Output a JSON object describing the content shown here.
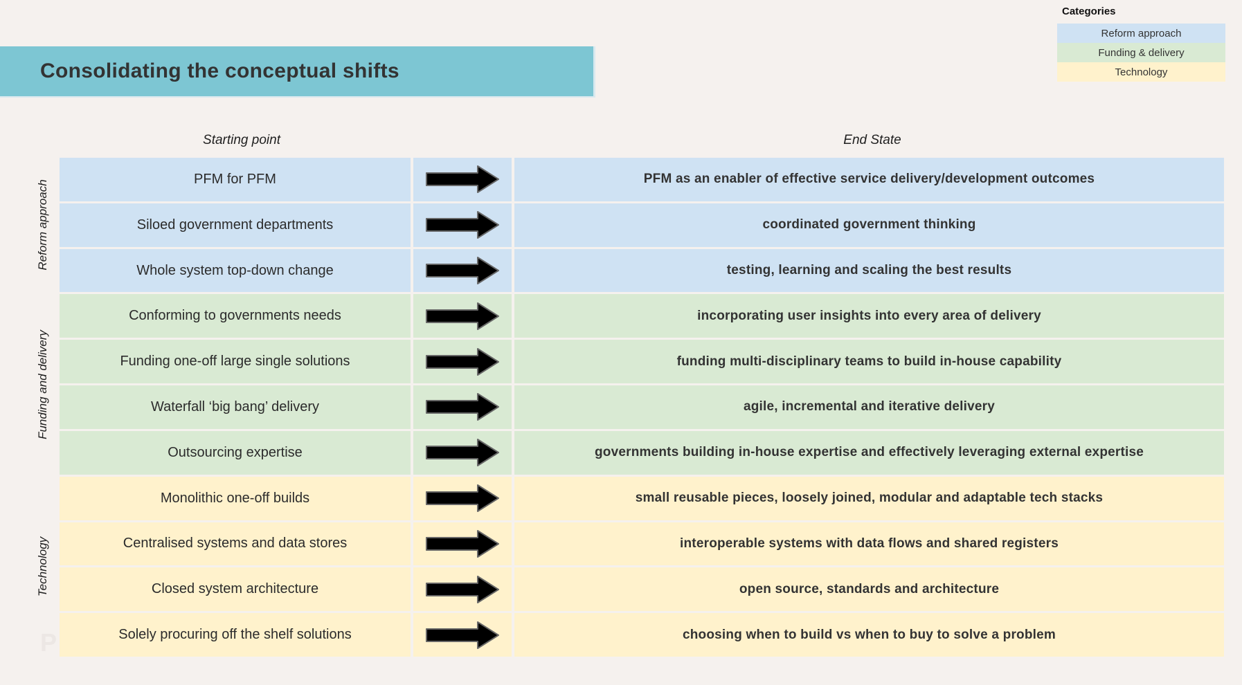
{
  "title": {
    "text": "Consolidating the conceptual shifts",
    "banner_color": "#7dc6d3",
    "text_color": "#333333"
  },
  "background_color": "#f5f1ee",
  "legend": {
    "heading": "Categories",
    "items": [
      {
        "label": "Reform approach",
        "color": "#cfe2f3"
      },
      {
        "label": "Funding & delivery",
        "color": "#d9ead3"
      },
      {
        "label": "Technology",
        "color": "#fff2cc"
      }
    ]
  },
  "columns": {
    "start": "Starting point",
    "end": "End State"
  },
  "arrow": {
    "icon": "right-arrow",
    "fill": "#000000",
    "stroke": "#666666"
  },
  "watermark": "P",
  "groups": [
    {
      "label": "Reform approach",
      "color": "#cfe2f3",
      "rows": [
        {
          "start": "PFM for PFM",
          "end": "PFM as an enabler of effective service delivery/development outcomes"
        },
        {
          "start": "Siloed government departments",
          "end": "coordinated government thinking"
        },
        {
          "start": "Whole system top-down change",
          "end": "testing, learning and scaling the best results"
        }
      ]
    },
    {
      "label": "Funding and delivery",
      "color": "#d9ead3",
      "rows": [
        {
          "start": "Conforming to governments needs",
          "end": "incorporating user insights into every area of delivery"
        },
        {
          "start": "Funding one-off large single solutions",
          "end": "funding multi-disciplinary teams to build in-house capability"
        },
        {
          "start": "Waterfall ‘big bang’ delivery",
          "end": "agile, incremental and iterative delivery"
        },
        {
          "start": "Outsourcing expertise",
          "end": "governments building in-house expertise and effectively leveraging external expertise"
        }
      ]
    },
    {
      "label": "Technology",
      "color": "#fff2cc",
      "rows": [
        {
          "start": "Monolithic one-off builds",
          "end": "small reusable pieces, loosely joined, modular and adaptable tech stacks"
        },
        {
          "start": "Centralised systems and data stores",
          "end": "interoperable systems with data flows and shared registers"
        },
        {
          "start": "Closed system architecture",
          "end": "open source, standards and architecture"
        },
        {
          "start": "Solely procuring off the shelf solutions",
          "end": "choosing when to build vs when to buy to solve a problem"
        }
      ]
    }
  ]
}
